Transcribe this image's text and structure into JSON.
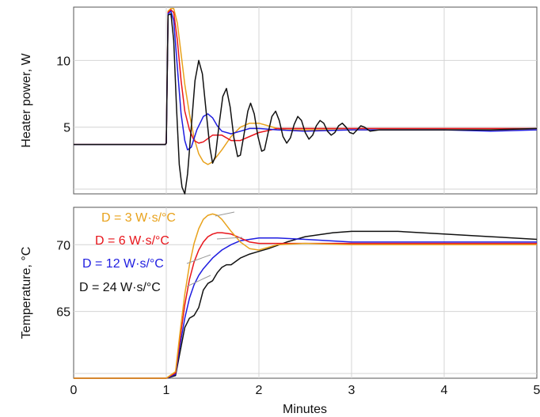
{
  "chart_data": [
    {
      "type": "line",
      "ylabel": "Heater power, W",
      "xlim": [
        0,
        5
      ],
      "ylim": [
        0,
        14
      ],
      "yticks": [
        5,
        10
      ],
      "grid": true,
      "series": [
        {
          "color": "#e8a21c",
          "points": [
            [
              0,
              3.7
            ],
            [
              0.5,
              3.7
            ],
            [
              0.99,
              3.7
            ],
            [
              1.0,
              3.8
            ],
            [
              1.02,
              13.7
            ],
            [
              1.05,
              13.9
            ],
            [
              1.08,
              13.9
            ],
            [
              1.12,
              12.8
            ],
            [
              1.16,
              10.5
            ],
            [
              1.2,
              8.2
            ],
            [
              1.25,
              6.0
            ],
            [
              1.3,
              4.2
            ],
            [
              1.35,
              3.0
            ],
            [
              1.4,
              2.4
            ],
            [
              1.45,
              2.2
            ],
            [
              1.5,
              2.4
            ],
            [
              1.6,
              3.3
            ],
            [
              1.7,
              4.3
            ],
            [
              1.8,
              5.0
            ],
            [
              1.9,
              5.3
            ],
            [
              2.0,
              5.3
            ],
            [
              2.1,
              5.1
            ],
            [
              2.2,
              4.9
            ],
            [
              2.3,
              4.8
            ],
            [
              2.5,
              4.8
            ],
            [
              3.0,
              4.8
            ],
            [
              3.5,
              4.8
            ],
            [
              4.0,
              4.8
            ],
            [
              4.5,
              4.8
            ],
            [
              5.0,
              4.8
            ]
          ]
        },
        {
          "color": "#e8151b",
          "points": [
            [
              0,
              3.7
            ],
            [
              0.5,
              3.7
            ],
            [
              0.99,
              3.7
            ],
            [
              1.0,
              3.8
            ],
            [
              1.02,
              13.6
            ],
            [
              1.05,
              13.8
            ],
            [
              1.08,
              13.6
            ],
            [
              1.12,
              11.5
            ],
            [
              1.16,
              8.5
            ],
            [
              1.2,
              6.2
            ],
            [
              1.25,
              4.8
            ],
            [
              1.3,
              4.0
            ],
            [
              1.35,
              3.8
            ],
            [
              1.4,
              3.9
            ],
            [
              1.5,
              4.4
            ],
            [
              1.6,
              4.4
            ],
            [
              1.7,
              4.0
            ],
            [
              1.8,
              4.0
            ],
            [
              1.9,
              4.3
            ],
            [
              2.0,
              4.6
            ],
            [
              2.2,
              4.9
            ],
            [
              2.5,
              4.9
            ],
            [
              3.0,
              4.9
            ],
            [
              3.5,
              4.9
            ],
            [
              4.0,
              4.9
            ],
            [
              4.5,
              4.9
            ],
            [
              5.0,
              4.9
            ]
          ]
        },
        {
          "color": "#1f1de0",
          "points": [
            [
              0,
              3.7
            ],
            [
              0.5,
              3.7
            ],
            [
              0.99,
              3.7
            ],
            [
              1.0,
              3.8
            ],
            [
              1.02,
              13.5
            ],
            [
              1.05,
              13.7
            ],
            [
              1.08,
              13.0
            ],
            [
              1.12,
              9.5
            ],
            [
              1.16,
              6.0
            ],
            [
              1.2,
              4.0
            ],
            [
              1.23,
              3.3
            ],
            [
              1.27,
              3.5
            ],
            [
              1.33,
              4.8
            ],
            [
              1.4,
              5.8
            ],
            [
              1.45,
              6.0
            ],
            [
              1.5,
              5.7
            ],
            [
              1.55,
              5.1
            ],
            [
              1.6,
              4.7
            ],
            [
              1.7,
              4.5
            ],
            [
              1.8,
              4.7
            ],
            [
              1.9,
              4.9
            ],
            [
              2.0,
              4.9
            ],
            [
              2.2,
              4.8
            ],
            [
              2.5,
              4.7
            ],
            [
              3.0,
              4.8
            ],
            [
              3.5,
              4.8
            ],
            [
              4.0,
              4.8
            ],
            [
              4.5,
              4.7
            ],
            [
              5.0,
              4.8
            ]
          ]
        },
        {
          "color": "#111111",
          "points": [
            [
              0,
              3.7
            ],
            [
              0.5,
              3.7
            ],
            [
              0.99,
              3.7
            ],
            [
              1.0,
              3.8
            ],
            [
              1.02,
              13.4
            ],
            [
              1.05,
              13.5
            ],
            [
              1.08,
              11.5
            ],
            [
              1.11,
              6.5
            ],
            [
              1.14,
              2.2
            ],
            [
              1.17,
              0.5
            ],
            [
              1.2,
              0.0
            ],
            [
              1.23,
              1.5
            ],
            [
              1.27,
              5.0
            ],
            [
              1.31,
              8.5
            ],
            [
              1.35,
              10.0
            ],
            [
              1.39,
              9.0
            ],
            [
              1.43,
              6.2
            ],
            [
              1.47,
              3.5
            ],
            [
              1.5,
              2.3
            ],
            [
              1.53,
              2.8
            ],
            [
              1.57,
              5.2
            ],
            [
              1.61,
              7.3
            ],
            [
              1.65,
              7.9
            ],
            [
              1.69,
              6.5
            ],
            [
              1.73,
              4.2
            ],
            [
              1.77,
              2.8
            ],
            [
              1.8,
              2.9
            ],
            [
              1.84,
              4.5
            ],
            [
              1.88,
              6.2
            ],
            [
              1.91,
              6.8
            ],
            [
              1.95,
              6.0
            ],
            [
              1.99,
              4.3
            ],
            [
              2.03,
              3.2
            ],
            [
              2.06,
              3.3
            ],
            [
              2.1,
              4.6
            ],
            [
              2.14,
              5.8
            ],
            [
              2.18,
              6.2
            ],
            [
              2.22,
              5.5
            ],
            [
              2.26,
              4.3
            ],
            [
              2.3,
              3.8
            ],
            [
              2.34,
              4.2
            ],
            [
              2.38,
              5.2
            ],
            [
              2.42,
              5.8
            ],
            [
              2.46,
              5.5
            ],
            [
              2.5,
              4.6
            ],
            [
              2.54,
              4.1
            ],
            [
              2.58,
              4.4
            ],
            [
              2.62,
              5.1
            ],
            [
              2.66,
              5.5
            ],
            [
              2.7,
              5.3
            ],
            [
              2.74,
              4.7
            ],
            [
              2.78,
              4.4
            ],
            [
              2.82,
              4.6
            ],
            [
              2.86,
              5.1
            ],
            [
              2.9,
              5.3
            ],
            [
              2.94,
              5.0
            ],
            [
              2.98,
              4.6
            ],
            [
              3.02,
              4.5
            ],
            [
              3.06,
              4.8
            ],
            [
              3.1,
              5.1
            ],
            [
              3.14,
              5.0
            ],
            [
              3.2,
              4.7
            ],
            [
              3.3,
              4.8
            ],
            [
              3.5,
              4.8
            ],
            [
              3.8,
              4.8
            ],
            [
              4.0,
              4.8
            ],
            [
              4.5,
              4.8
            ],
            [
              5.0,
              4.9
            ]
          ]
        }
      ]
    },
    {
      "type": "line",
      "xlabel": "Minutes",
      "ylabel": "Temperature, °C",
      "xlim": [
        0,
        5
      ],
      "ylim": [
        60,
        72.8
      ],
      "xticks": [
        0,
        1,
        2,
        3,
        4,
        5
      ],
      "yticks": [
        65,
        70
      ],
      "grid": true,
      "annotations": [
        "D = 3 W·s/°C",
        "D = 6 W·s/°C",
        "D = 12 W·s/°C",
        "D = 24 W·s/°C"
      ],
      "series": [
        {
          "color": "#111111",
          "points": [
            [
              0,
              60.0
            ],
            [
              0.5,
              60.0
            ],
            [
              1.0,
              60.0
            ],
            [
              1.1,
              60.2
            ],
            [
              1.15,
              62.0
            ],
            [
              1.2,
              63.8
            ],
            [
              1.25,
              64.5
            ],
            [
              1.3,
              64.7
            ],
            [
              1.35,
              65.3
            ],
            [
              1.4,
              66.6
            ],
            [
              1.45,
              67.1
            ],
            [
              1.5,
              67.3
            ],
            [
              1.55,
              67.9
            ],
            [
              1.6,
              68.3
            ],
            [
              1.65,
              68.5
            ],
            [
              1.7,
              68.5
            ],
            [
              1.8,
              69.0
            ],
            [
              1.9,
              69.3
            ],
            [
              2.0,
              69.5
            ],
            [
              2.1,
              69.7
            ],
            [
              2.3,
              70.2
            ],
            [
              2.5,
              70.6
            ],
            [
              2.8,
              70.9
            ],
            [
              3.0,
              71.0
            ],
            [
              3.5,
              71.0
            ],
            [
              4.0,
              70.8
            ],
            [
              4.5,
              70.6
            ],
            [
              5.0,
              70.4
            ]
          ]
        },
        {
          "color": "#1f1de0",
          "points": [
            [
              0,
              60.0
            ],
            [
              0.5,
              60.0
            ],
            [
              1.0,
              60.0
            ],
            [
              1.1,
              60.3
            ],
            [
              1.15,
              62.5
            ],
            [
              1.2,
              64.5
            ],
            [
              1.25,
              66.0
            ],
            [
              1.3,
              67.0
            ],
            [
              1.35,
              67.7
            ],
            [
              1.4,
              68.2
            ],
            [
              1.5,
              69.0
            ],
            [
              1.6,
              69.6
            ],
            [
              1.7,
              70.0
            ],
            [
              1.8,
              70.3
            ],
            [
              1.9,
              70.4
            ],
            [
              2.0,
              70.5
            ],
            [
              2.2,
              70.5
            ],
            [
              2.5,
              70.4
            ],
            [
              3.0,
              70.2
            ],
            [
              3.5,
              70.2
            ],
            [
              4.0,
              70.2
            ],
            [
              4.5,
              70.2
            ],
            [
              5.0,
              70.2
            ]
          ]
        },
        {
          "color": "#e8151b",
          "points": [
            [
              0,
              60.0
            ],
            [
              0.5,
              60.0
            ],
            [
              1.0,
              60.0
            ],
            [
              1.1,
              60.4
            ],
            [
              1.15,
              63.0
            ],
            [
              1.2,
              65.5
            ],
            [
              1.25,
              67.4
            ],
            [
              1.3,
              68.7
            ],
            [
              1.35,
              69.6
            ],
            [
              1.4,
              70.2
            ],
            [
              1.45,
              70.6
            ],
            [
              1.5,
              70.8
            ],
            [
              1.55,
              70.9
            ],
            [
              1.6,
              70.9
            ],
            [
              1.7,
              70.8
            ],
            [
              1.8,
              70.5
            ],
            [
              1.9,
              70.2
            ],
            [
              2.0,
              70.1
            ],
            [
              2.2,
              70.1
            ],
            [
              2.5,
              70.1
            ],
            [
              3.0,
              70.1
            ],
            [
              3.5,
              70.1
            ],
            [
              4.0,
              70.1
            ],
            [
              4.5,
              70.1
            ],
            [
              5.0,
              70.1
            ]
          ]
        },
        {
          "color": "#e8a21c",
          "points": [
            [
              0,
              60.0
            ],
            [
              0.5,
              60.0
            ],
            [
              1.0,
              60.0
            ],
            [
              1.1,
              60.5
            ],
            [
              1.15,
              63.5
            ],
            [
              1.2,
              66.3
            ],
            [
              1.25,
              68.5
            ],
            [
              1.3,
              70.1
            ],
            [
              1.35,
              71.2
            ],
            [
              1.4,
              71.9
            ],
            [
              1.45,
              72.2
            ],
            [
              1.5,
              72.3
            ],
            [
              1.55,
              72.2
            ],
            [
              1.6,
              71.9
            ],
            [
              1.7,
              71.0
            ],
            [
              1.8,
              70.2
            ],
            [
              1.9,
              69.7
            ],
            [
              2.0,
              69.6
            ],
            [
              2.1,
              69.8
            ],
            [
              2.2,
              70.0
            ],
            [
              2.5,
              70.1
            ],
            [
              3.0,
              70.0
            ],
            [
              3.5,
              70.0
            ],
            [
              4.0,
              70.0
            ],
            [
              4.5,
              70.0
            ],
            [
              5.0,
              70.0
            ]
          ]
        }
      ]
    }
  ]
}
